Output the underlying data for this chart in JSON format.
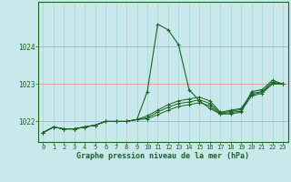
{
  "title": "Graphe pression niveau de la mer (hPa)",
  "bg_color": "#c8e8ec",
  "grid_color_v": "#a8d8dc",
  "grid_color_h": "#e8a0a0",
  "line_color": "#1a6620",
  "xlim": [
    -0.5,
    23.5
  ],
  "ylim": [
    1021.45,
    1025.2
  ],
  "yticks": [
    1022,
    1023,
    1024
  ],
  "xticks": [
    0,
    1,
    2,
    3,
    4,
    5,
    6,
    7,
    8,
    9,
    10,
    11,
    12,
    13,
    14,
    15,
    16,
    17,
    18,
    19,
    20,
    21,
    22,
    23
  ],
  "main_y": [
    1021.7,
    1021.85,
    1021.8,
    1021.8,
    1021.85,
    1021.9,
    1022.0,
    1022.0,
    1022.0,
    1022.05,
    1022.8,
    1024.6,
    1024.45,
    1024.05,
    1022.85,
    1022.55,
    1022.35,
    1022.2,
    1022.2,
    1022.25,
    1022.8,
    1022.85,
    1023.1,
    1023.0
  ],
  "flat1": [
    1021.7,
    1021.85,
    1021.8,
    1021.8,
    1021.85,
    1021.9,
    1022.0,
    1022.0,
    1022.0,
    1022.05,
    1022.15,
    1022.3,
    1022.45,
    1022.55,
    1022.6,
    1022.65,
    1022.55,
    1022.25,
    1022.3,
    1022.35,
    1022.75,
    1022.8,
    1023.05,
    1023.0
  ],
  "flat2": [
    1021.7,
    1021.85,
    1021.8,
    1021.8,
    1021.85,
    1021.9,
    1022.0,
    1022.0,
    1022.0,
    1022.05,
    1022.1,
    1022.25,
    1022.38,
    1022.48,
    1022.52,
    1022.58,
    1022.48,
    1022.22,
    1022.27,
    1022.32,
    1022.72,
    1022.78,
    1023.03,
    1023.0
  ],
  "flat3": [
    1021.7,
    1021.85,
    1021.8,
    1021.8,
    1021.85,
    1021.9,
    1022.0,
    1022.0,
    1022.0,
    1022.05,
    1022.07,
    1022.18,
    1022.3,
    1022.4,
    1022.45,
    1022.5,
    1022.42,
    1022.2,
    1022.24,
    1022.28,
    1022.68,
    1022.75,
    1023.0,
    1023.0
  ]
}
